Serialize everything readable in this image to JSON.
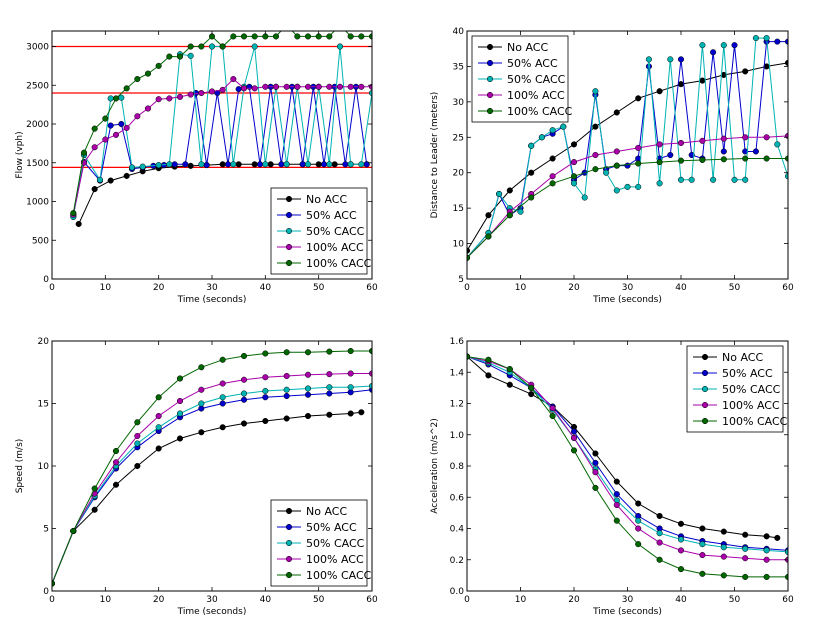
{
  "chart_data": [
    {
      "type": "line",
      "xlabel": "Time (seconds)",
      "ylabel": "Flow (vph)",
      "xlim": [
        0,
        60
      ],
      "ylim": [
        0,
        3200
      ],
      "xticks": [
        0,
        10,
        20,
        30,
        40,
        50,
        60
      ],
      "yticks": [
        0,
        500,
        1000,
        1500,
        2000,
        2500,
        3000
      ],
      "reference_lines": {
        "y": [
          3000,
          2400,
          1440
        ],
        "color": "#ff0000"
      },
      "legend_position": "lower-right",
      "series": [
        {
          "name": "No ACC",
          "color": "#000000",
          "x": [
            5,
            8,
            11,
            14,
            17,
            20,
            23,
            26,
            29,
            32,
            35,
            38,
            41,
            44,
            47,
            50,
            53,
            56,
            59
          ],
          "y": [
            710,
            1160,
            1270,
            1330,
            1390,
            1430,
            1450,
            1460,
            1470,
            1480,
            1480,
            1480,
            1480,
            1480,
            1480,
            1480,
            1480,
            1480,
            1480
          ]
        },
        {
          "name": "50% ACC",
          "color": "#0000cc",
          "x": [
            4,
            6,
            9,
            11,
            13,
            15,
            17,
            19,
            21,
            23,
            25,
            27,
            29,
            31,
            33,
            35,
            37,
            39,
            41,
            43,
            45,
            47,
            49,
            51,
            53,
            55,
            57,
            59
          ],
          "y": [
            820,
            1510,
            1270,
            1980,
            2000,
            1420,
            1440,
            1460,
            1470,
            1480,
            1480,
            2400,
            1470,
            2400,
            1480,
            2450,
            2480,
            1480,
            2480,
            1480,
            2480,
            1480,
            2480,
            1480,
            2480,
            1480,
            2480,
            1480
          ]
        },
        {
          "name": "50% CACC",
          "color": "#00b3b3",
          "x": [
            4,
            6,
            9,
            11,
            13,
            15,
            17,
            20,
            22,
            24,
            26,
            28,
            30,
            32,
            34,
            36,
            38,
            40,
            42,
            44,
            46,
            48,
            50,
            52,
            54,
            56,
            58,
            60
          ],
          "y": [
            800,
            1600,
            1280,
            2330,
            2340,
            1440,
            1450,
            1470,
            1480,
            2900,
            2880,
            1480,
            3000,
            3000,
            1480,
            2480,
            3000,
            1480,
            2480,
            1480,
            2480,
            1480,
            2480,
            1480,
            3000,
            1480,
            1480,
            2400
          ]
        },
        {
          "name": "100% ACC",
          "color": "#aa00aa",
          "x": [
            4,
            6,
            8,
            10,
            12,
            14,
            16,
            18,
            20,
            22,
            24,
            26,
            28,
            30,
            32,
            34,
            36,
            38,
            40,
            42,
            44,
            46,
            48,
            50,
            52,
            54,
            56,
            58,
            60
          ],
          "y": [
            830,
            1500,
            1700,
            1800,
            1860,
            1950,
            2100,
            2200,
            2320,
            2330,
            2350,
            2380,
            2400,
            2420,
            2440,
            2580,
            2460,
            2460,
            2480,
            2480,
            2480,
            2480,
            2480,
            2480,
            2480,
            2480,
            2480,
            2480,
            2480
          ]
        },
        {
          "name": "100% CACC",
          "color": "#006600",
          "x": [
            4,
            6,
            8,
            10,
            12,
            14,
            16,
            18,
            20,
            22,
            24,
            26,
            28,
            30,
            32,
            34,
            36,
            38,
            40,
            42,
            44,
            46,
            48,
            50,
            52,
            54,
            56,
            58,
            60
          ],
          "y": [
            850,
            1630,
            1940,
            2070,
            2330,
            2460,
            2580,
            2650,
            2750,
            2870,
            2870,
            3000,
            3000,
            3130,
            3000,
            3130,
            3130,
            3130,
            3130,
            3130,
            3280,
            3130,
            3130,
            3130,
            3130,
            3280,
            3130,
            3130,
            3130
          ]
        }
      ]
    },
    {
      "type": "line",
      "xlabel": "Time (seconds)",
      "ylabel": "Distance to Leader (meters)",
      "xlim": [
        0,
        60
      ],
      "ylim": [
        5,
        40
      ],
      "xticks": [
        0,
        10,
        20,
        30,
        40,
        50,
        60
      ],
      "yticks": [
        5,
        10,
        15,
        20,
        25,
        30,
        35,
        40
      ],
      "legend_position": "upper-left",
      "series": [
        {
          "name": "No ACC",
          "color": "#000000",
          "x": [
            0,
            4,
            8,
            12,
            16,
            20,
            24,
            28,
            32,
            36,
            40,
            44,
            48,
            52,
            56,
            60
          ],
          "y": [
            9,
            14,
            17.5,
            20,
            22,
            24,
            26.5,
            28.5,
            30.5,
            31.5,
            32.5,
            33,
            33.8,
            34.3,
            35,
            35.5
          ]
        },
        {
          "name": "50% ACC",
          "color": "#0000cc",
          "x": [
            0,
            4,
            6,
            8,
            10,
            12,
            14,
            16,
            18,
            20,
            22,
            24,
            26,
            28,
            30,
            32,
            34,
            36,
            38,
            40,
            42,
            44,
            46,
            48,
            50,
            52,
            54,
            56,
            58,
            60
          ],
          "y": [
            8,
            11.5,
            17,
            14,
            15,
            23.8,
            25,
            25.5,
            26.5,
            19,
            20,
            31,
            20.5,
            21,
            21,
            22,
            35,
            22,
            22.5,
            36,
            22.5,
            22,
            37,
            23,
            38,
            23,
            23,
            38.5,
            38.5,
            38.5
          ]
        },
        {
          "name": "50% CACC",
          "color": "#00b3b3",
          "x": [
            0,
            4,
            6,
            8,
            10,
            12,
            14,
            16,
            18,
            20,
            22,
            24,
            26,
            28,
            30,
            32,
            34,
            36,
            38,
            40,
            42,
            44,
            46,
            48,
            50,
            52,
            54,
            56,
            58,
            60
          ],
          "y": [
            8,
            11.5,
            17,
            15,
            14.5,
            23.8,
            25,
            26,
            26.5,
            18.5,
            16.5,
            31.5,
            20,
            17.5,
            18,
            18,
            36,
            18.5,
            36,
            19,
            19,
            38,
            19,
            38,
            19,
            19,
            39,
            39,
            24,
            19.5
          ]
        },
        {
          "name": "100% ACC",
          "color": "#aa00aa",
          "x": [
            0,
            4,
            8,
            12,
            16,
            20,
            24,
            28,
            32,
            36,
            40,
            44,
            48,
            52,
            56,
            60
          ],
          "y": [
            8,
            11,
            14.5,
            17,
            19.5,
            21.5,
            22.5,
            23,
            23.5,
            24,
            24.2,
            24.5,
            24.8,
            25,
            25,
            25.2
          ]
        },
        {
          "name": "100% CACC",
          "color": "#006600",
          "x": [
            0,
            4,
            8,
            12,
            16,
            20,
            24,
            28,
            32,
            36,
            40,
            44,
            48,
            52,
            56,
            60
          ],
          "y": [
            8,
            11,
            14,
            16.5,
            18.5,
            19.5,
            20.5,
            21,
            21.3,
            21.5,
            21.7,
            21.8,
            21.9,
            22,
            22,
            22
          ]
        }
      ]
    },
    {
      "type": "line",
      "xlabel": "Time (seconds)",
      "ylabel": "Speed (m/s)",
      "xlim": [
        0,
        60
      ],
      "ylim": [
        0,
        20
      ],
      "xticks": [
        0,
        10,
        20,
        30,
        40,
        50,
        60
      ],
      "yticks": [
        0,
        5,
        10,
        15,
        20
      ],
      "legend_position": "lower-right",
      "series": [
        {
          "name": "No ACC",
          "color": "#000000",
          "x": [
            0,
            4,
            8,
            12,
            16,
            20,
            24,
            28,
            32,
            36,
            40,
            44,
            48,
            52,
            56,
            58
          ],
          "y": [
            0.6,
            4.8,
            6.5,
            8.5,
            10,
            11.4,
            12.2,
            12.7,
            13.1,
            13.4,
            13.6,
            13.8,
            14,
            14.1,
            14.2,
            14.3
          ]
        },
        {
          "name": "50% ACC",
          "color": "#0000cc",
          "x": [
            0,
            4,
            8,
            12,
            16,
            20,
            24,
            28,
            32,
            36,
            40,
            44,
            48,
            52,
            56,
            60
          ],
          "y": [
            0.6,
            4.8,
            7.5,
            9.8,
            11.5,
            12.8,
            13.9,
            14.6,
            15,
            15.3,
            15.5,
            15.6,
            15.7,
            15.8,
            15.9,
            16.1
          ]
        },
        {
          "name": "50% CACC",
          "color": "#00b3b3",
          "x": [
            0,
            4,
            8,
            12,
            16,
            20,
            24,
            28,
            32,
            36,
            40,
            44,
            48,
            52,
            56,
            60
          ],
          "y": [
            0.6,
            4.8,
            7.6,
            10,
            11.8,
            13.1,
            14.2,
            15,
            15.5,
            15.8,
            16,
            16.1,
            16.2,
            16.3,
            16.3,
            16.4
          ]
        },
        {
          "name": "100% ACC",
          "color": "#aa00aa",
          "x": [
            0,
            4,
            8,
            12,
            16,
            20,
            24,
            28,
            32,
            36,
            40,
            44,
            48,
            52,
            56,
            60
          ],
          "y": [
            0.6,
            4.8,
            7.8,
            10.3,
            12.4,
            14,
            15.2,
            16.1,
            16.6,
            16.9,
            17.1,
            17.2,
            17.3,
            17.35,
            17.4,
            17.4
          ]
        },
        {
          "name": "100% CACC",
          "color": "#006600",
          "x": [
            0,
            4,
            8,
            12,
            16,
            20,
            24,
            28,
            32,
            36,
            40,
            44,
            48,
            52,
            56,
            60
          ],
          "y": [
            0.6,
            4.8,
            8.2,
            11.2,
            13.5,
            15.5,
            17,
            17.9,
            18.5,
            18.8,
            19,
            19.1,
            19.1,
            19.15,
            19.2,
            19.2
          ]
        }
      ]
    },
    {
      "type": "line",
      "xlabel": "Time (seconds)",
      "ylabel": "Acceleration (m/s^2)",
      "xlim": [
        0,
        60
      ],
      "ylim": [
        0,
        1.6
      ],
      "xticks": [
        0,
        10,
        20,
        30,
        40,
        50,
        60
      ],
      "yticks": [
        0.0,
        0.2,
        0.4,
        0.6,
        0.8,
        1.0,
        1.2,
        1.4,
        1.6
      ],
      "legend_position": "upper-right",
      "series": [
        {
          "name": "No ACC",
          "color": "#000000",
          "x": [
            0,
            4,
            8,
            12,
            16,
            20,
            24,
            28,
            32,
            36,
            40,
            44,
            48,
            52,
            56,
            58
          ],
          "y": [
            1.5,
            1.38,
            1.32,
            1.26,
            1.18,
            1.05,
            0.88,
            0.7,
            0.56,
            0.48,
            0.43,
            0.4,
            0.38,
            0.36,
            0.35,
            0.34
          ]
        },
        {
          "name": "50% ACC",
          "color": "#0000cc",
          "x": [
            0,
            4,
            8,
            12,
            16,
            20,
            24,
            28,
            32,
            36,
            40,
            44,
            48,
            52,
            56,
            60
          ],
          "y": [
            1.5,
            1.45,
            1.38,
            1.3,
            1.18,
            1.02,
            0.82,
            0.62,
            0.48,
            0.4,
            0.35,
            0.32,
            0.3,
            0.28,
            0.27,
            0.26
          ]
        },
        {
          "name": "50% CACC",
          "color": "#00b3b3",
          "x": [
            0,
            4,
            8,
            12,
            16,
            20,
            24,
            28,
            32,
            36,
            40,
            44,
            48,
            52,
            56,
            60
          ],
          "y": [
            1.5,
            1.46,
            1.4,
            1.3,
            1.16,
            0.98,
            0.78,
            0.58,
            0.45,
            0.37,
            0.33,
            0.3,
            0.28,
            0.27,
            0.26,
            0.25
          ]
        },
        {
          "name": "100% ACC",
          "color": "#aa00aa",
          "x": [
            0,
            4,
            8,
            12,
            16,
            20,
            24,
            28,
            32,
            36,
            40,
            44,
            48,
            52,
            56,
            60
          ],
          "y": [
            1.5,
            1.47,
            1.42,
            1.32,
            1.17,
            0.98,
            0.76,
            0.55,
            0.4,
            0.31,
            0.26,
            0.23,
            0.22,
            0.21,
            0.2,
            0.2
          ]
        },
        {
          "name": "100% CACC",
          "color": "#006600",
          "x": [
            0,
            4,
            8,
            12,
            16,
            20,
            24,
            28,
            32,
            36,
            40,
            44,
            48,
            52,
            56,
            60
          ],
          "y": [
            1.5,
            1.48,
            1.42,
            1.3,
            1.12,
            0.9,
            0.66,
            0.45,
            0.3,
            0.2,
            0.14,
            0.11,
            0.1,
            0.09,
            0.09,
            0.09
          ]
        }
      ]
    }
  ]
}
